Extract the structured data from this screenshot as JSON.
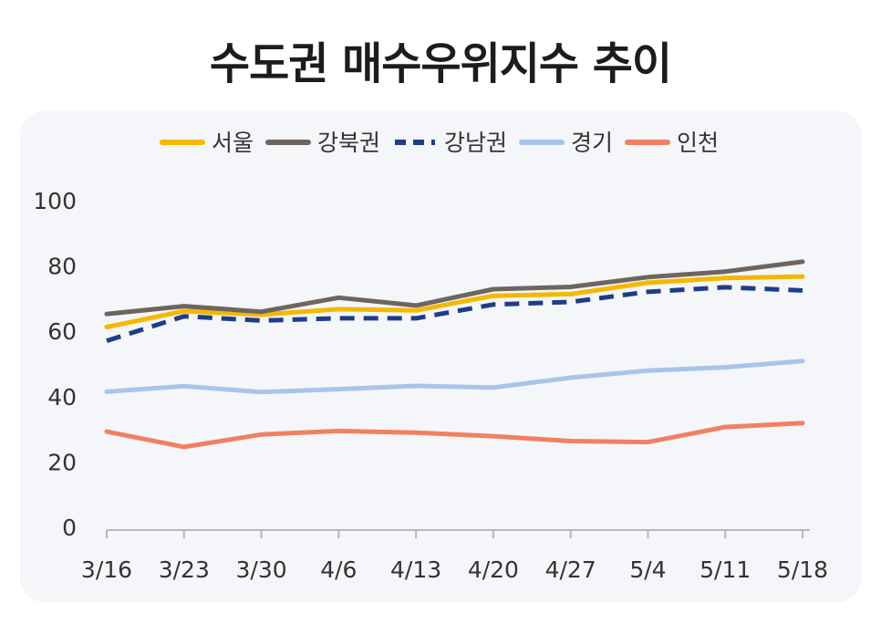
{
  "chart_data": {
    "type": "line",
    "title": "수도권 매수우위지수 추이",
    "categories": [
      "3/16",
      "3/23",
      "3/30",
      "4/6",
      "4/13",
      "4/20",
      "4/27",
      "5/4",
      "5/11",
      "5/18"
    ],
    "ylim": [
      0,
      100
    ],
    "yticks": [
      0,
      20,
      40,
      60,
      80,
      100
    ],
    "grid": false,
    "legend_position": "top",
    "series": [
      {
        "name": "서울",
        "color": "#f5b800",
        "dash": "solid",
        "values": [
          61.3,
          66.2,
          65.1,
          66.8,
          66.4,
          70.9,
          71.4,
          74.9,
          76.3,
          76.8
        ]
      },
      {
        "name": "강북권",
        "color": "#6e6560",
        "dash": "solid",
        "values": [
          65.3,
          67.7,
          66.0,
          70.3,
          67.9,
          72.9,
          73.6,
          76.6,
          78.3,
          81.3
        ]
      },
      {
        "name": "강남권",
        "color": "#1f3c88",
        "dash": "dashed",
        "values": [
          57.1,
          64.6,
          63.3,
          64.0,
          64.0,
          68.2,
          69.0,
          72.1,
          73.5,
          72.5
        ]
      },
      {
        "name": "경기",
        "color": "#a9c4ea",
        "dash": "solid",
        "values": [
          41.5,
          43.2,
          41.4,
          42.3,
          43.3,
          42.8,
          45.8,
          48.0,
          49.0,
          50.9
        ]
      },
      {
        "name": "인천",
        "color": "#f28060",
        "dash": "solid",
        "values": [
          29.3,
          24.6,
          28.4,
          29.5,
          29.0,
          27.9,
          26.4,
          26.1,
          30.7,
          31.9
        ]
      }
    ]
  }
}
